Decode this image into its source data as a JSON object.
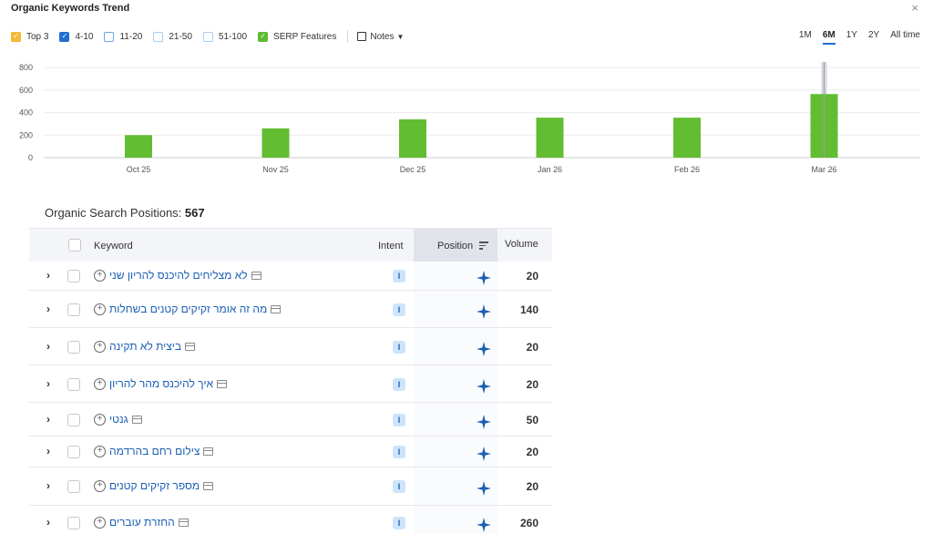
{
  "header": {
    "title": "Organic Keywords Trend",
    "close": "×"
  },
  "filters": [
    {
      "label": "Top 3",
      "state": "checked",
      "color": "#f5b835"
    },
    {
      "label": "4-10",
      "state": "checked",
      "color": "#1f6fd1"
    },
    {
      "label": "11-20",
      "state": "unchecked",
      "color": "#69a4ea"
    },
    {
      "label": "21-50",
      "state": "unchecked",
      "color": "#a9cdf3"
    },
    {
      "label": "51-100",
      "state": "unchecked",
      "color": "#a9cdf3"
    },
    {
      "label": "SERP Features",
      "state": "checked",
      "color": "#5ebc2e"
    }
  ],
  "notes_label": "Notes",
  "ranges": [
    {
      "label": "1M",
      "active": false
    },
    {
      "label": "6M",
      "active": true
    },
    {
      "label": "1Y",
      "active": false
    },
    {
      "label": "2Y",
      "active": false
    },
    {
      "label": "All time",
      "active": false
    }
  ],
  "chart_data": {
    "type": "bar",
    "categories": [
      "Oct 25",
      "Nov 25",
      "Dec 25",
      "Jan 26",
      "Feb 26",
      "Mar 26"
    ],
    "series": [
      {
        "color": "#62bd32",
        "values": [
          200,
          260,
          340,
          355,
          355,
          565
        ]
      }
    ],
    "yticks": [
      0,
      200,
      400,
      600,
      800
    ],
    "ylim": [
      0,
      850
    ],
    "grid": true,
    "highlight_category": "Mar 26"
  },
  "table": {
    "title_prefix": "Organic Search Positions:",
    "title_count": "567",
    "columns": {
      "keyword": "Keyword",
      "intent": "Intent",
      "position": "Position",
      "volume": "Volume"
    },
    "rows": [
      {
        "keyword": "לא מצליחים להיכנס להריון שני",
        "intent": "I",
        "volume": "20"
      },
      {
        "keyword": "מה זה אומר זקיקים קטנים בשחלות",
        "intent": "I",
        "volume": "140"
      },
      {
        "keyword": "ביצית לא תקינה",
        "intent": "I",
        "volume": "20"
      },
      {
        "keyword": "איך להיכנס מהר להריון",
        "intent": "I",
        "volume": "20"
      },
      {
        "keyword": "גנטי",
        "intent": "I",
        "volume": "50"
      },
      {
        "keyword": "צילום רחם בהרדמה",
        "intent": "I",
        "volume": "20"
      },
      {
        "keyword": "מספר זקיקים קטנים",
        "intent": "I",
        "volume": "20"
      },
      {
        "keyword": "החזרת עוברים",
        "intent": "I",
        "volume": "260"
      }
    ]
  }
}
